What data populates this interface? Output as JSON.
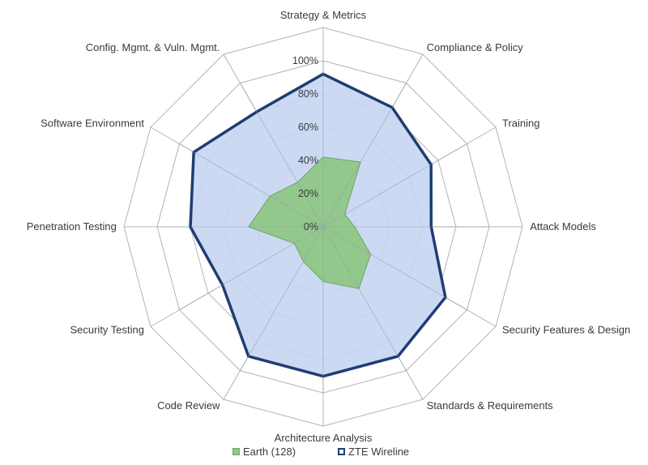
{
  "chart_data": {
    "type": "radar",
    "categories": [
      "Strategy & Metrics",
      "Compliance & Policy",
      "Training",
      "Attack Models",
      "Security Features & Design",
      "Standards & Requirements",
      "Architecture Analysis",
      "Code Review",
      "Security Testing",
      "Penetration Testing",
      "Software Environment",
      "Config. Mgmt. & Vuln. Mgmt."
    ],
    "rlim": [
      0,
      100
    ],
    "ticks": [
      "0%",
      "20%",
      "40%",
      "60%",
      "80%",
      "100%"
    ],
    "grid": true,
    "legend_position": "bottom",
    "series": [
      {
        "name": "ZTE Wireline",
        "values": [
          92,
          83,
          75,
          65,
          85,
          90,
          90,
          90,
          70,
          80,
          90,
          80
        ],
        "fill": "#c6d5f2",
        "stroke": "#1f3d73"
      },
      {
        "name": "Earth (128)",
        "values": [
          42,
          45,
          15,
          19,
          33,
          43,
          33,
          24,
          20,
          45,
          37,
          31
        ],
        "fill": "#8fc787",
        "stroke": "#6aa860"
      }
    ]
  }
}
